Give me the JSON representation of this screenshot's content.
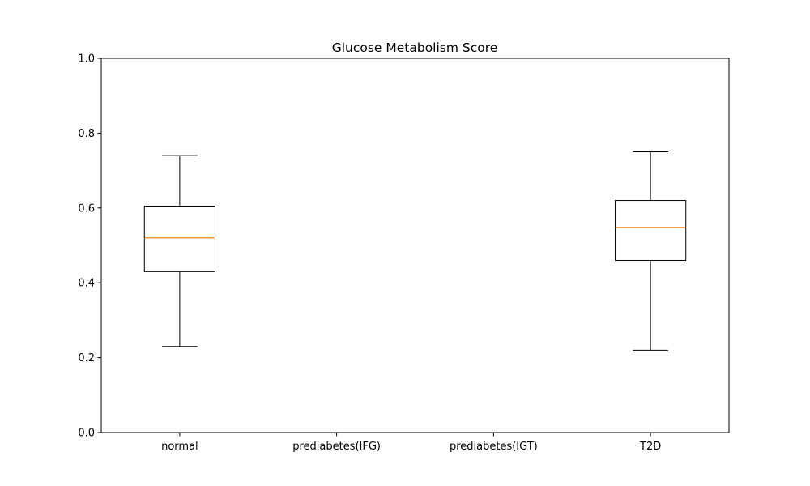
{
  "chart_data": {
    "type": "box",
    "title": "Glucose Metabolism Score",
    "xlabel": "",
    "ylabel": "",
    "ylim": [
      0,
      1.0
    ],
    "yticks": [
      "0.0",
      "0.2",
      "0.4",
      "0.6",
      "0.8",
      "1.0"
    ],
    "categories": [
      "normal",
      "prediabetes(IFG)",
      "prediabetes(IGT)",
      "T2D"
    ],
    "boxes": [
      {
        "category": "normal",
        "whisker_low": 0.23,
        "q1": 0.43,
        "median": 0.52,
        "q3": 0.605,
        "whisker_high": 0.74
      },
      null,
      null,
      {
        "category": "T2D",
        "whisker_low": 0.22,
        "q1": 0.46,
        "median": 0.548,
        "q3": 0.62,
        "whisker_high": 0.75
      }
    ],
    "grid": false,
    "colors": {
      "box": "#000000",
      "median": "#ff7f0e",
      "axes": "#000000"
    }
  }
}
